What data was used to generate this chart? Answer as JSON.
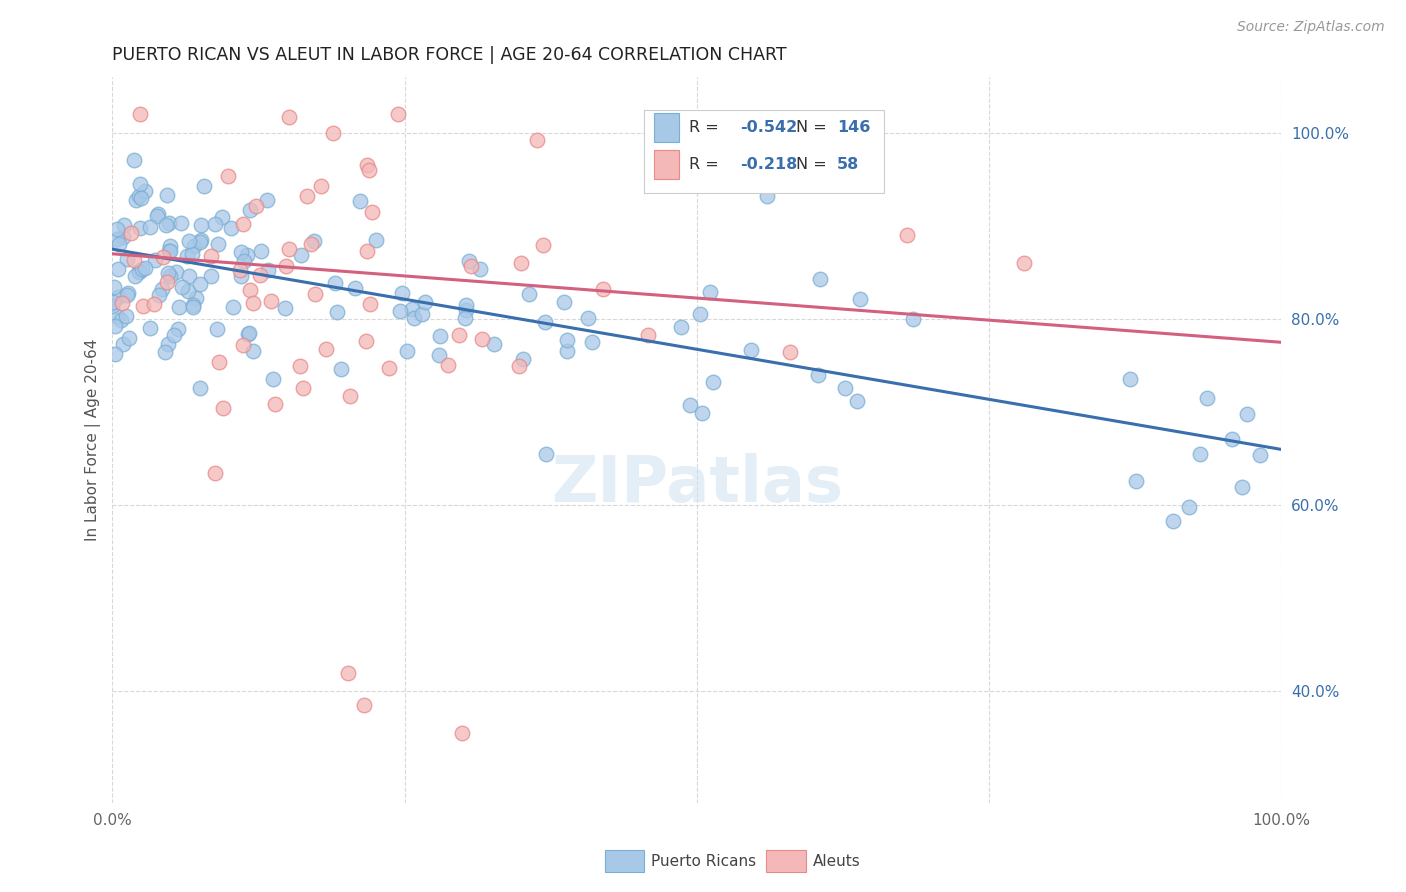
{
  "title": "PUERTO RICAN VS ALEUT IN LABOR FORCE | AGE 20-64 CORRELATION CHART",
  "source": "Source: ZipAtlas.com",
  "ylabel": "In Labor Force | Age 20-64",
  "xlim": [
    0.0,
    1.0
  ],
  "ylim": [
    0.28,
    1.06
  ],
  "ytick_labels_right": [
    "100.0%",
    "80.0%",
    "60.0%",
    "40.0%"
  ],
  "ytick_positions_right": [
    1.0,
    0.8,
    0.6,
    0.4
  ],
  "blue_color": "#a8c8e8",
  "blue_edge_color": "#7aafd4",
  "pink_color": "#f4b8b8",
  "pink_edge_color": "#e88888",
  "blue_line_color": "#3a6fad",
  "pink_line_color": "#d46080",
  "legend_blue_R": "-0.542",
  "legend_blue_N": "146",
  "legend_pink_R": "-0.218",
  "legend_pink_N": "58",
  "watermark": "ZIPatlas",
  "blue_intercept": 0.875,
  "blue_slope": -0.215,
  "pink_intercept": 0.87,
  "pink_slope": -0.095,
  "background_color": "#ffffff",
  "grid_color": "#d8d8d8"
}
